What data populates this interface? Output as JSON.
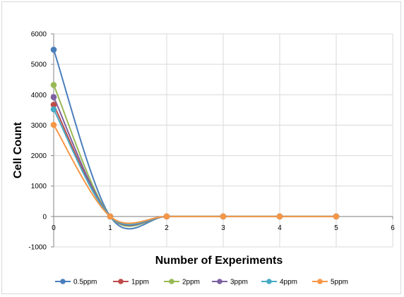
{
  "chart_data": {
    "type": "scatter",
    "xlabel": "Number of Experiments",
    "ylabel": "Cell Count",
    "xlim": [
      0,
      6
    ],
    "ylim": [
      -1000,
      6000
    ],
    "xticks": [
      "0",
      "1",
      "2",
      "3",
      "4",
      "5",
      "6"
    ],
    "yticks": [
      "-1000",
      "0",
      "1000",
      "2000",
      "3000",
      "4000",
      "5000",
      "6000"
    ],
    "grid": true,
    "legend_position": "bottom",
    "smooth_lines": true,
    "x": [
      0,
      1,
      2,
      3,
      4,
      5
    ],
    "series": [
      {
        "name": "0.5ppm",
        "color": "#4a7ebb",
        "values": [
          5480,
          0,
          0,
          0,
          0,
          0
        ]
      },
      {
        "name": "1ppm",
        "color": "#be4b48",
        "values": [
          3670,
          0,
          0,
          0,
          0,
          0
        ]
      },
      {
        "name": "2ppm",
        "color": "#98b954",
        "values": [
          4320,
          0,
          0,
          0,
          0,
          0
        ]
      },
      {
        "name": "3ppm",
        "color": "#7d60a0",
        "values": [
          3920,
          0,
          0,
          0,
          0,
          0
        ]
      },
      {
        "name": "4ppm",
        "color": "#46aac5",
        "values": [
          3520,
          0,
          0,
          0,
          0,
          0
        ]
      },
      {
        "name": "5ppm",
        "color": "#f79646",
        "values": [
          3010,
          0,
          0,
          0,
          0,
          0
        ]
      }
    ]
  }
}
